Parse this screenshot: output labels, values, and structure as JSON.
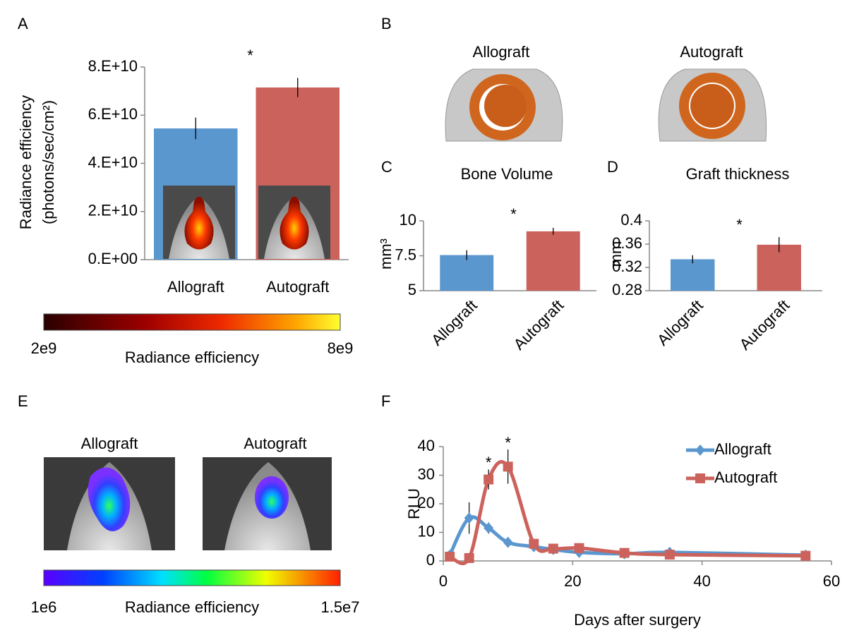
{
  "panel_labels": [
    "A",
    "B",
    "C",
    "D",
    "E",
    "F"
  ],
  "images": {
    "B": [
      "Allograft",
      "Autograft"
    ],
    "E": [
      "Allograft",
      "Autograft"
    ]
  },
  "colorbars": [
    {
      "min_label": "2e9",
      "max_label": "8e9",
      "label": "Radiance efficiency"
    },
    {
      "min_label": "1e6",
      "max_label": "1.5e7",
      "label": "Radiance efficiency"
    }
  ],
  "chart_data": [
    {
      "type": "bar",
      "y_label": [
        "Radiance efficiency",
        "(photons/sec/cm²)"
      ],
      "categories": [
        "Allograft",
        "Autograft"
      ],
      "values": [
        54500000000,
        71500000000
      ],
      "errors": [
        4500000000,
        4000000000
      ],
      "colors": [
        "#5b97cf",
        "#cc625c"
      ],
      "annotation": "*",
      "ylim": [
        0,
        80000000000
      ],
      "yticks": [
        {
          "value": 0,
          "label": "0.E+00"
        },
        {
          "value": 20000000000,
          "label": "2.E+10"
        },
        {
          "value": 40000000000,
          "label": "4.E+10"
        },
        {
          "value": 60000000000,
          "label": "6.E+10"
        },
        {
          "value": 80000000000,
          "label": "8.E+10"
        }
      ]
    },
    {
      "type": "bar",
      "title": "Bone Volume",
      "y_label": [
        "mm³"
      ],
      "categories": [
        "Allograft",
        "Autograft"
      ],
      "values": [
        7.55,
        9.25
      ],
      "errors": [
        0.35,
        0.25
      ],
      "colors": [
        "#5b97cf",
        "#cc625c"
      ],
      "annotation": "*",
      "ylim": [
        5,
        10
      ],
      "yticks": [
        5,
        7.5,
        10
      ]
    },
    {
      "type": "bar",
      "title": "Graft thickness",
      "y_label": [
        "mm"
      ],
      "categories": [
        "Allograft",
        "Autograft"
      ],
      "values": [
        0.334,
        0.359
      ],
      "errors": [
        0.007,
        0.013
      ],
      "colors": [
        "#5b97cf",
        "#cc625c"
      ],
      "annotation": "*",
      "ylim": [
        0.28,
        0.4
      ],
      "yticks": [
        0.28,
        0.32,
        0.36,
        0.4
      ]
    },
    {
      "type": "line",
      "x_label": "Days after surgery",
      "y_label": "RLU",
      "xlim": [
        0,
        60
      ],
      "xticks": [
        0,
        20,
        40,
        60
      ],
      "ylim": [
        0,
        40
      ],
      "yticks": [
        0,
        10,
        20,
        30,
        40
      ],
      "series": [
        {
          "name": "Allograft",
          "color": "#5b97cf",
          "marker": "diamond",
          "x": [
            1,
            4,
            7,
            10,
            14,
            17,
            21,
            28,
            35,
            56
          ],
          "values": [
            2,
            15,
            11.5,
            6.5,
            5,
            4,
            3,
            2.5,
            3,
            2
          ],
          "errors": [
            0.5,
            5.5,
            2,
            0.8,
            0.8,
            0.5,
            0.5,
            0.5,
            0.5,
            0.3
          ]
        },
        {
          "name": "Autograft",
          "color": "#cc625c",
          "marker": "square",
          "x": [
            1,
            4,
            7,
            10,
            14,
            17,
            21,
            28,
            35,
            56
          ],
          "values": [
            1.5,
            1,
            28.5,
            33,
            6,
            4.3,
            4.5,
            2.8,
            2.2,
            1.8
          ],
          "errors": [
            0.5,
            0.3,
            3.5,
            6,
            1,
            0.5,
            0.5,
            0.5,
            0.5,
            0.3
          ]
        }
      ],
      "annotations": [
        {
          "text": "*",
          "x": 7
        },
        {
          "text": "*",
          "x": 10
        }
      ],
      "legend": "top-right"
    }
  ]
}
